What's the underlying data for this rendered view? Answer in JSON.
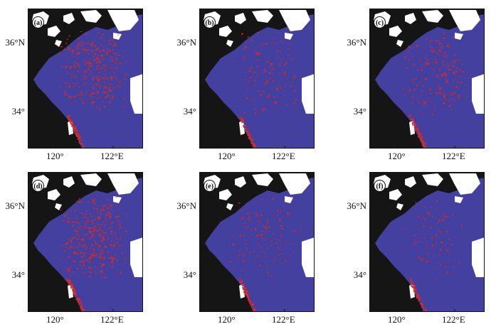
{
  "panels": [
    {
      "label": "(a)",
      "red_density": 0.9
    },
    {
      "label": "(b)",
      "red_density": 0.35
    },
    {
      "label": "(c)",
      "red_density": 0.55
    },
    {
      "label": "(d)",
      "red_density": 1.0
    },
    {
      "label": "(e)",
      "red_density": 0.35
    },
    {
      "label": "(f)",
      "red_density": 0.25
    }
  ],
  "axes": {
    "y_ticks": [
      "36°N",
      "34°"
    ],
    "x_ticks": [
      "120°",
      "122°E"
    ]
  },
  "colors": {
    "sea": "#4340a0",
    "land": "#151515",
    "cloud": "#ffffff",
    "anomaly": "#e0281e"
  }
}
